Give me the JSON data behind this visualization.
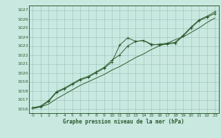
{
  "title": "Graphe pression niveau de la mer (hPa)",
  "bg_color": "#c8e8e0",
  "line_color": "#2d5a2d",
  "grid_color": "#a0c8c0",
  "xlim": [
    -0.5,
    23.5
  ],
  "ylim": [
    1015.5,
    1027.5
  ],
  "xticks": [
    0,
    1,
    2,
    3,
    4,
    5,
    6,
    7,
    8,
    9,
    10,
    11,
    12,
    13,
    14,
    15,
    16,
    17,
    18,
    19,
    20,
    21,
    22,
    23
  ],
  "yticks": [
    1016,
    1017,
    1018,
    1019,
    1020,
    1021,
    1022,
    1023,
    1024,
    1025,
    1026,
    1027
  ],
  "series1_x": [
    0,
    1,
    2,
    3,
    4,
    5,
    6,
    7,
    8,
    9,
    10,
    11,
    12,
    13,
    14,
    15,
    16,
    17,
    18,
    19,
    20,
    21,
    22,
    23
  ],
  "series1_y": [
    1016.1,
    1016.2,
    1016.8,
    1017.8,
    1018.2,
    1018.7,
    1019.2,
    1019.5,
    1020.0,
    1020.5,
    1021.2,
    1023.1,
    1023.9,
    1023.5,
    1023.6,
    1023.2,
    1023.1,
    1023.2,
    1023.3,
    1024.1,
    1025.0,
    1025.8,
    1026.2,
    1026.6
  ],
  "series2_x": [
    0,
    1,
    2,
    3,
    4,
    5,
    6,
    7,
    8,
    9,
    10,
    11,
    12,
    13,
    14,
    15,
    16,
    17,
    18,
    19,
    20,
    21,
    22,
    23
  ],
  "series2_y": [
    1016.1,
    1016.3,
    1016.9,
    1017.9,
    1018.3,
    1018.8,
    1019.3,
    1019.6,
    1020.1,
    1020.6,
    1021.4,
    1022.0,
    1023.0,
    1023.5,
    1023.6,
    1023.1,
    1023.2,
    1023.3,
    1023.4,
    1024.2,
    1025.1,
    1025.9,
    1026.3,
    1026.8
  ],
  "series3_x": [
    0,
    1,
    2,
    3,
    4,
    5,
    6,
    7,
    8,
    9,
    10,
    11,
    12,
    13,
    14,
    15,
    16,
    17,
    18,
    19,
    20,
    21,
    22,
    23
  ],
  "series3_y": [
    1016.0,
    1016.2,
    1016.5,
    1017.1,
    1017.6,
    1018.1,
    1018.6,
    1019.0,
    1019.4,
    1019.8,
    1020.3,
    1020.7,
    1021.2,
    1021.7,
    1022.1,
    1022.6,
    1023.0,
    1023.3,
    1023.7,
    1024.0,
    1024.5,
    1025.0,
    1025.6,
    1026.1
  ]
}
